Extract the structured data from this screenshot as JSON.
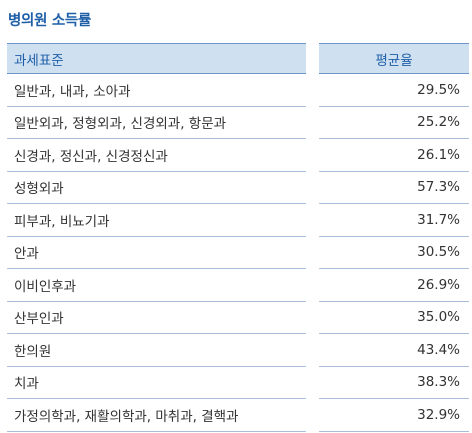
{
  "title": "병의원 소득률",
  "table": {
    "headers": {
      "category": "과세표준",
      "average": "평균율"
    },
    "rows": [
      {
        "category": "일반과, 내과, 소아과",
        "average": "29.5%"
      },
      {
        "category": "일반외과, 정형외과, 신경외과, 항문과",
        "average": "25.2%"
      },
      {
        "category": "신경과, 정신과, 신경정신과",
        "average": "26.1%"
      },
      {
        "category": "성형외과",
        "average": "57.3%"
      },
      {
        "category": "피부과, 비뇨기과",
        "average": "31.7%"
      },
      {
        "category": "안과",
        "average": "30.5%"
      },
      {
        "category": "이비인후과",
        "average": "26.9%"
      },
      {
        "category": "산부인과",
        "average": "35.0%"
      },
      {
        "category": "한의원",
        "average": "43.4%"
      },
      {
        "category": "치과",
        "average": "38.3%"
      },
      {
        "category": "가정의학과, 재활의학과, 마취과, 결핵과",
        "average": "32.9%"
      }
    ]
  },
  "colors": {
    "title": "#1f5fa8",
    "header_bg": "#cfe0f1",
    "row_border": "#a9bfdc"
  }
}
